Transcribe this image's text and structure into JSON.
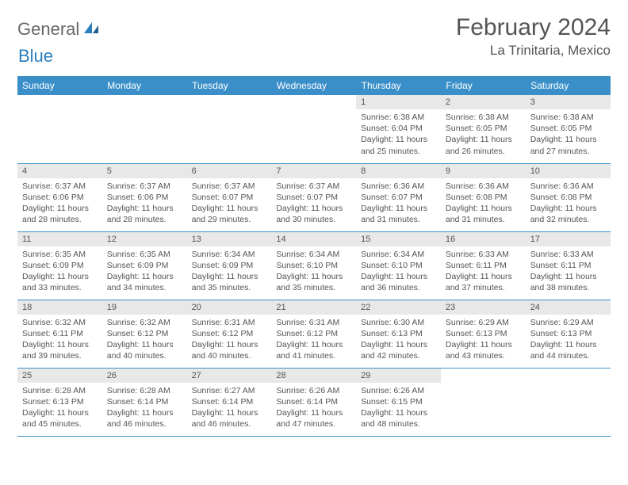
{
  "logo": {
    "part1": "General",
    "part2": "Blue"
  },
  "title": "February 2024",
  "location": "La Trinitaria, Mexico",
  "colors": {
    "header_bg": "#3b8fc9",
    "header_text": "#ffffff",
    "daynum_bg": "#e8e8e8",
    "border": "#3b8fc9",
    "text": "#555555"
  },
  "weekdays": [
    "Sunday",
    "Monday",
    "Tuesday",
    "Wednesday",
    "Thursday",
    "Friday",
    "Saturday"
  ],
  "weeks": [
    [
      null,
      null,
      null,
      null,
      {
        "n": "1",
        "sr": "6:38 AM",
        "ss": "6:04 PM",
        "dl": "11 hours and 25 minutes."
      },
      {
        "n": "2",
        "sr": "6:38 AM",
        "ss": "6:05 PM",
        "dl": "11 hours and 26 minutes."
      },
      {
        "n": "3",
        "sr": "6:38 AM",
        "ss": "6:05 PM",
        "dl": "11 hours and 27 minutes."
      }
    ],
    [
      {
        "n": "4",
        "sr": "6:37 AM",
        "ss": "6:06 PM",
        "dl": "11 hours and 28 minutes."
      },
      {
        "n": "5",
        "sr": "6:37 AM",
        "ss": "6:06 PM",
        "dl": "11 hours and 28 minutes."
      },
      {
        "n": "6",
        "sr": "6:37 AM",
        "ss": "6:07 PM",
        "dl": "11 hours and 29 minutes."
      },
      {
        "n": "7",
        "sr": "6:37 AM",
        "ss": "6:07 PM",
        "dl": "11 hours and 30 minutes."
      },
      {
        "n": "8",
        "sr": "6:36 AM",
        "ss": "6:07 PM",
        "dl": "11 hours and 31 minutes."
      },
      {
        "n": "9",
        "sr": "6:36 AM",
        "ss": "6:08 PM",
        "dl": "11 hours and 31 minutes."
      },
      {
        "n": "10",
        "sr": "6:36 AM",
        "ss": "6:08 PM",
        "dl": "11 hours and 32 minutes."
      }
    ],
    [
      {
        "n": "11",
        "sr": "6:35 AM",
        "ss": "6:09 PM",
        "dl": "11 hours and 33 minutes."
      },
      {
        "n": "12",
        "sr": "6:35 AM",
        "ss": "6:09 PM",
        "dl": "11 hours and 34 minutes."
      },
      {
        "n": "13",
        "sr": "6:34 AM",
        "ss": "6:09 PM",
        "dl": "11 hours and 35 minutes."
      },
      {
        "n": "14",
        "sr": "6:34 AM",
        "ss": "6:10 PM",
        "dl": "11 hours and 35 minutes."
      },
      {
        "n": "15",
        "sr": "6:34 AM",
        "ss": "6:10 PM",
        "dl": "11 hours and 36 minutes."
      },
      {
        "n": "16",
        "sr": "6:33 AM",
        "ss": "6:11 PM",
        "dl": "11 hours and 37 minutes."
      },
      {
        "n": "17",
        "sr": "6:33 AM",
        "ss": "6:11 PM",
        "dl": "11 hours and 38 minutes."
      }
    ],
    [
      {
        "n": "18",
        "sr": "6:32 AM",
        "ss": "6:11 PM",
        "dl": "11 hours and 39 minutes."
      },
      {
        "n": "19",
        "sr": "6:32 AM",
        "ss": "6:12 PM",
        "dl": "11 hours and 40 minutes."
      },
      {
        "n": "20",
        "sr": "6:31 AM",
        "ss": "6:12 PM",
        "dl": "11 hours and 40 minutes."
      },
      {
        "n": "21",
        "sr": "6:31 AM",
        "ss": "6:12 PM",
        "dl": "11 hours and 41 minutes."
      },
      {
        "n": "22",
        "sr": "6:30 AM",
        "ss": "6:13 PM",
        "dl": "11 hours and 42 minutes."
      },
      {
        "n": "23",
        "sr": "6:29 AM",
        "ss": "6:13 PM",
        "dl": "11 hours and 43 minutes."
      },
      {
        "n": "24",
        "sr": "6:29 AM",
        "ss": "6:13 PM",
        "dl": "11 hours and 44 minutes."
      }
    ],
    [
      {
        "n": "25",
        "sr": "6:28 AM",
        "ss": "6:13 PM",
        "dl": "11 hours and 45 minutes."
      },
      {
        "n": "26",
        "sr": "6:28 AM",
        "ss": "6:14 PM",
        "dl": "11 hours and 46 minutes."
      },
      {
        "n": "27",
        "sr": "6:27 AM",
        "ss": "6:14 PM",
        "dl": "11 hours and 46 minutes."
      },
      {
        "n": "28",
        "sr": "6:26 AM",
        "ss": "6:14 PM",
        "dl": "11 hours and 47 minutes."
      },
      {
        "n": "29",
        "sr": "6:26 AM",
        "ss": "6:15 PM",
        "dl": "11 hours and 48 minutes."
      },
      null,
      null
    ]
  ],
  "labels": {
    "sunrise": "Sunrise:",
    "sunset": "Sunset:",
    "daylight": "Daylight:"
  }
}
